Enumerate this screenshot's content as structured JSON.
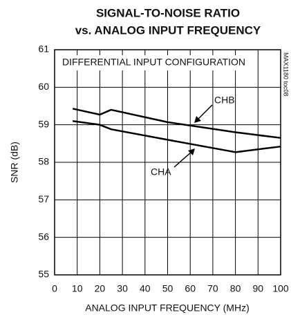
{
  "chart_data": {
    "type": "line",
    "title": "SIGNAL-TO-NOISE RATIO",
    "subtitle": "vs. ANALOG INPUT FREQUENCY",
    "x_label": "ANALOG INPUT FREQUENCY (MHz)",
    "y_label": "SNR (dB)",
    "annotations": [
      "DIFFERENTIAL INPUT CONFIGURATION",
      "MAX1180 toc08"
    ],
    "series": [
      {
        "name": "CHB",
        "color": "#000000",
        "x": [
          8,
          20,
          25,
          50,
          80,
          100
        ],
        "values": [
          59.43,
          59.27,
          59.4,
          59.07,
          58.8,
          58.65
        ]
      },
      {
        "name": "CHA",
        "color": "#000000",
        "x": [
          8,
          20,
          25,
          50,
          80,
          100
        ],
        "values": [
          59.1,
          59.0,
          58.88,
          58.6,
          58.27,
          58.42
        ]
      }
    ],
    "xlim": [
      0,
      100
    ],
    "xticks": [
      0,
      10,
      20,
      30,
      40,
      50,
      60,
      70,
      80,
      90,
      100
    ],
    "ylim": [
      55,
      61
    ],
    "yticks": [
      55,
      56,
      57,
      58,
      59,
      60,
      61
    ],
    "grid": true
  }
}
